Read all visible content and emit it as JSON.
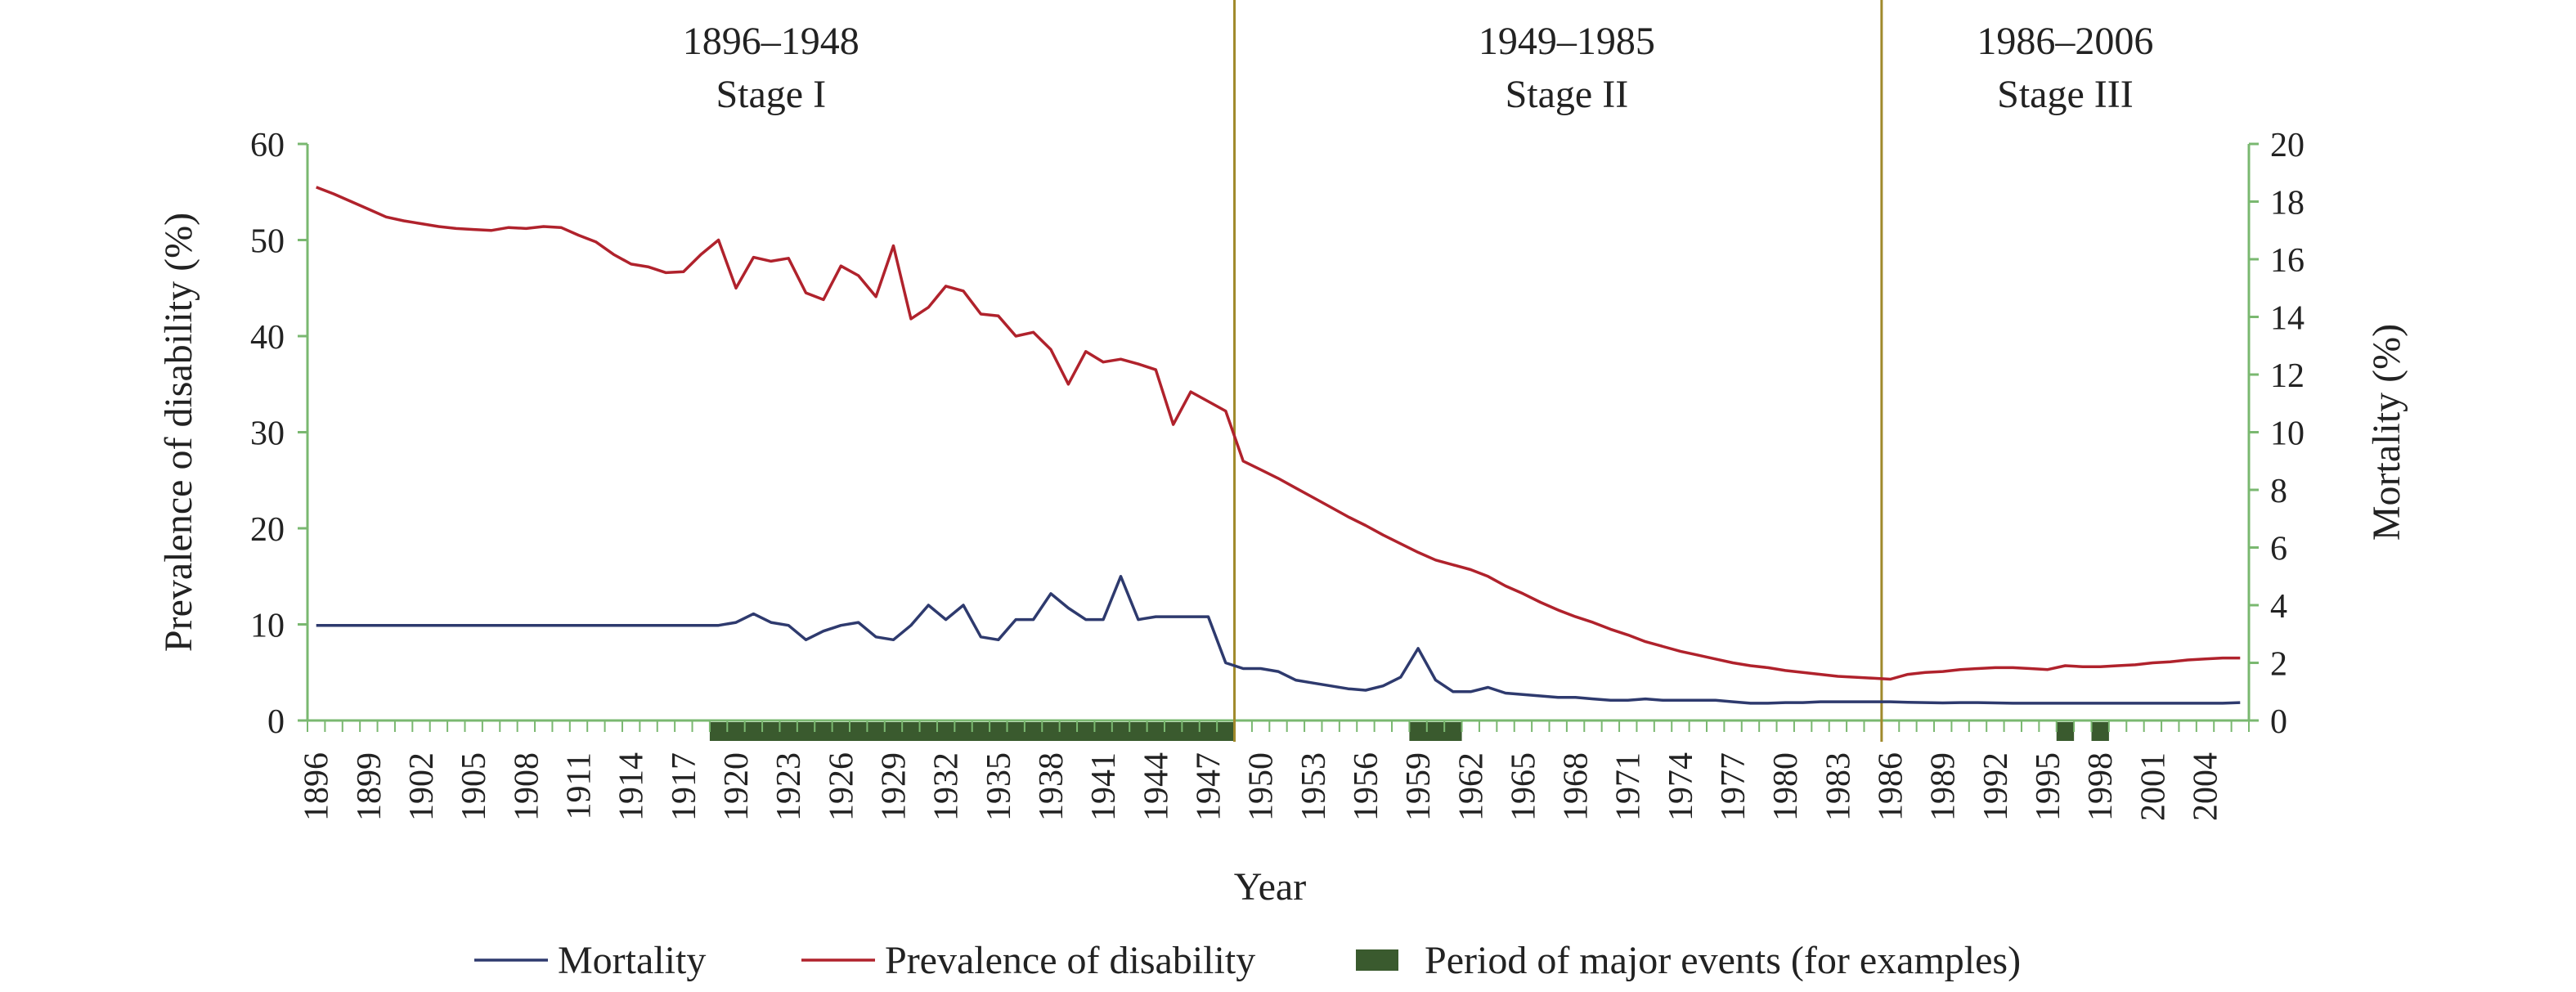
{
  "chart_data": {
    "type": "line",
    "xlabel": "Year",
    "ylabel_left": "Prevalence of disability (%)",
    "ylabel_right": "Mortality (%)",
    "x_range": [
      1896,
      2006
    ],
    "ylim_left": [
      0,
      60
    ],
    "ylim_right": [
      0,
      20
    ],
    "yticks_left": [
      "0",
      "10",
      "20",
      "30",
      "40",
      "50",
      "60"
    ],
    "yticks_right": [
      "0",
      "2",
      "4",
      "6",
      "8",
      "10",
      "12",
      "14",
      "16",
      "18",
      "20"
    ],
    "xticks": [
      "1896",
      "1899",
      "1902",
      "1905",
      "1908",
      "1911",
      "1914",
      "1917",
      "1920",
      "1923",
      "1926",
      "1929",
      "1932",
      "1935",
      "1938",
      "1941",
      "1944",
      "1947",
      "1950",
      "1953",
      "1956",
      "1959",
      "1962",
      "1965",
      "1968",
      "1971",
      "1974",
      "1977",
      "1980",
      "1983",
      "1986",
      "1989",
      "1992",
      "1995",
      "1998",
      "2001",
      "2004"
    ],
    "grid": false,
    "legend_position": "bottom",
    "colors": {
      "mortality": "#2e3a6e",
      "prevalence": "#b0222c",
      "events": "#3a5a2e",
      "divider": "#a08a2c",
      "right_axis": "#7ab870",
      "left_axis": "#7ab870"
    },
    "stages": [
      {
        "years": "1896–1948",
        "name": "Stage I",
        "center": 1922
      },
      {
        "years": "1949–1985",
        "name": "Stage II",
        "center": 1967.5
      },
      {
        "years": "1986–2006",
        "name": "Stage III",
        "center": 1996
      }
    ],
    "stage_dividers": [
      1948.5,
      1985.5
    ],
    "events": [
      [
        1918.5,
        1948.5
      ],
      [
        1958.5,
        1961.5
      ],
      [
        1995.5,
        1996.5
      ],
      [
        1997.5,
        1998.5
      ]
    ],
    "series": [
      {
        "name": "Prevalence of disability",
        "axis": "left",
        "x": [
          1896,
          1897,
          1898,
          1899,
          1900,
          1901,
          1902,
          1903,
          1904,
          1905,
          1906,
          1907,
          1908,
          1909,
          1910,
          1911,
          1912,
          1913,
          1914,
          1915,
          1916,
          1917,
          1918,
          1919,
          1920,
          1921,
          1922,
          1923,
          1924,
          1925,
          1926,
          1927,
          1928,
          1929,
          1930,
          1931,
          1932,
          1933,
          1934,
          1935,
          1936,
          1937,
          1938,
          1939,
          1940,
          1941,
          1942,
          1943,
          1944,
          1945,
          1946,
          1947,
          1948,
          1949,
          1950,
          1951,
          1952,
          1953,
          1954,
          1955,
          1956,
          1957,
          1958,
          1959,
          1960,
          1961,
          1962,
          1963,
          1964,
          1965,
          1966,
          1967,
          1968,
          1969,
          1970,
          1971,
          1972,
          1973,
          1974,
          1975,
          1976,
          1977,
          1978,
          1979,
          1980,
          1981,
          1982,
          1983,
          1984,
          1985,
          1986,
          1987,
          1988,
          1989,
          1990,
          1991,
          1992,
          1993,
          1994,
          1995,
          1996,
          1997,
          1998,
          1999,
          2000,
          2001,
          2002,
          2003,
          2004,
          2005,
          2006
        ],
        "values": [
          55.5,
          54.8,
          54.0,
          53.2,
          52.4,
          52.0,
          51.7,
          51.4,
          51.2,
          51.1,
          51.0,
          51.3,
          51.2,
          51.4,
          51.3,
          50.5,
          49.8,
          48.5,
          47.5,
          47.2,
          46.6,
          46.7,
          48.5,
          50.0,
          45.0,
          48.2,
          47.8,
          48.1,
          44.5,
          43.8,
          47.3,
          46.3,
          44.1,
          49.4,
          41.8,
          43.0,
          45.2,
          44.7,
          42.3,
          42.1,
          40.0,
          40.4,
          38.6,
          35.0,
          38.4,
          37.3,
          37.6,
          37.1,
          36.5,
          30.8,
          34.2,
          33.2,
          32.2,
          27.0,
          26.1,
          25.2,
          24.2,
          23.2,
          22.2,
          21.2,
          20.3,
          19.3,
          18.4,
          17.5,
          16.7,
          16.2,
          15.7,
          15.0,
          14.0,
          13.2,
          12.3,
          11.5,
          10.8,
          10.2,
          9.5,
          8.9,
          8.2,
          7.7,
          7.2,
          6.8,
          6.4,
          6.0,
          5.7,
          5.5,
          5.2,
          5.0,
          4.8,
          4.6,
          4.5,
          4.4,
          4.3,
          4.8,
          5.0,
          5.1,
          5.3,
          5.4,
          5.5,
          5.5,
          5.4,
          5.3,
          5.7,
          5.6,
          5.6,
          5.7,
          5.8,
          6.0,
          6.1,
          6.3,
          6.4,
          6.5,
          6.5
        ]
      },
      {
        "name": "Mortality",
        "axis": "right",
        "x": [
          1896,
          1897,
          1898,
          1899,
          1900,
          1901,
          1902,
          1903,
          1904,
          1905,
          1906,
          1907,
          1908,
          1909,
          1910,
          1911,
          1912,
          1913,
          1914,
          1915,
          1916,
          1917,
          1918,
          1919,
          1920,
          1921,
          1922,
          1923,
          1924,
          1925,
          1926,
          1927,
          1928,
          1929,
          1930,
          1931,
          1932,
          1933,
          1934,
          1935,
          1936,
          1937,
          1938,
          1939,
          1940,
          1941,
          1942,
          1943,
          1944,
          1945,
          1946,
          1947,
          1948,
          1949,
          1950,
          1951,
          1952,
          1953,
          1954,
          1955,
          1956,
          1957,
          1958,
          1959,
          1960,
          1961,
          1962,
          1963,
          1964,
          1965,
          1966,
          1967,
          1968,
          1969,
          1970,
          1971,
          1972,
          1973,
          1974,
          1975,
          1976,
          1977,
          1978,
          1979,
          1980,
          1981,
          1982,
          1983,
          1984,
          1985,
          1986,
          1987,
          1988,
          1989,
          1990,
          1991,
          1992,
          1993,
          1994,
          1995,
          1996,
          1997,
          1998,
          1999,
          2000,
          2001,
          2002,
          2003,
          2004,
          2005,
          2006
        ],
        "values": [
          3.3,
          3.3,
          3.3,
          3.3,
          3.3,
          3.3,
          3.3,
          3.3,
          3.3,
          3.3,
          3.3,
          3.3,
          3.3,
          3.3,
          3.3,
          3.3,
          3.3,
          3.3,
          3.3,
          3.3,
          3.3,
          3.3,
          3.3,
          3.3,
          3.4,
          3.7,
          3.4,
          3.3,
          2.8,
          3.1,
          3.3,
          3.4,
          2.9,
          2.8,
          3.3,
          4.0,
          3.5,
          4.0,
          2.9,
          2.8,
          3.5,
          3.5,
          4.4,
          3.9,
          3.5,
          3.5,
          5.0,
          3.5,
          3.6,
          3.6,
          3.6,
          3.6,
          2.0,
          1.8,
          1.8,
          1.7,
          1.4,
          1.3,
          1.2,
          1.1,
          1.05,
          1.2,
          1.5,
          2.5,
          1.4,
          1.0,
          1.0,
          1.15,
          0.95,
          0.9,
          0.85,
          0.8,
          0.8,
          0.75,
          0.7,
          0.7,
          0.75,
          0.7,
          0.7,
          0.7,
          0.7,
          0.65,
          0.6,
          0.6,
          0.62,
          0.62,
          0.65,
          0.65,
          0.65,
          0.65,
          0.65,
          0.63,
          0.62,
          0.61,
          0.62,
          0.62,
          0.61,
          0.6,
          0.6,
          0.6,
          0.6,
          0.6,
          0.6,
          0.6,
          0.6,
          0.6,
          0.6,
          0.6,
          0.6,
          0.6,
          0.62
        ]
      }
    ],
    "legend": [
      {
        "label": "Mortality",
        "kind": "line",
        "color_key": "mortality"
      },
      {
        "label": "Prevalence of disability",
        "kind": "line",
        "color_key": "prevalence"
      },
      {
        "label": "Period of major events (for examples)",
        "kind": "bar",
        "color_key": "events"
      }
    ]
  }
}
